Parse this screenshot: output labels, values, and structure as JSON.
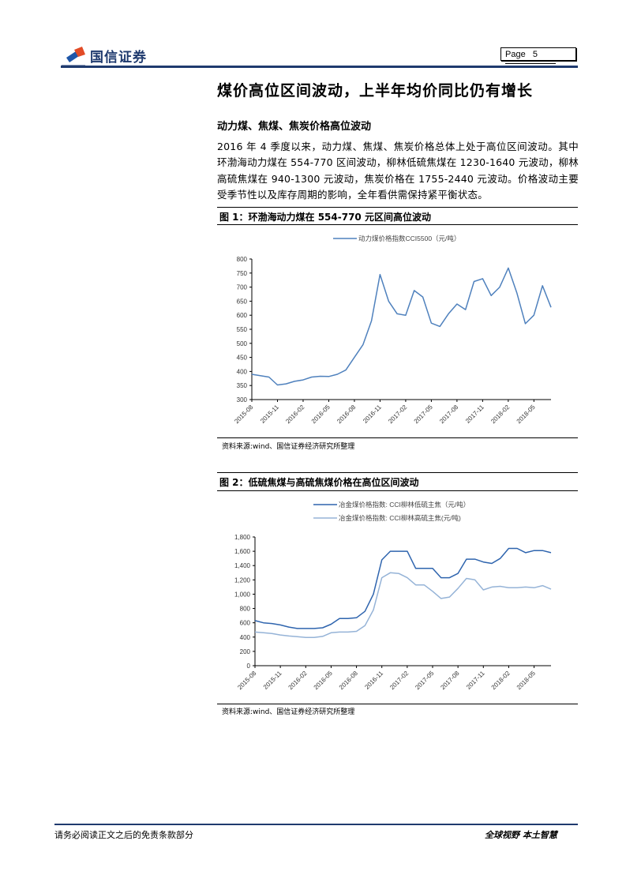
{
  "header": {
    "brand": "国信证券",
    "page_label": "Page",
    "page_number": "5"
  },
  "title": "煤价高位区间波动，上半年均价同比仍有增长",
  "section": {
    "subtitle": "动力煤、焦煤、焦炭价格高位波动",
    "paragraph": "2016 年 4 季度以来，动力煤、焦煤、焦炭价格总体上处于高位区间波动。其中环渤海动力煤在 554-770 区间波动，柳林低硫焦煤在 1230-1640 元波动，柳林高硫焦煤在 940-1300 元波动，焦炭价格在 1755-2440 元波动。价格波动主要受季节性以及库存周期的影响，全年看供需保持紧平衡状态。"
  },
  "figures": [
    {
      "label": "图 1：环渤海动力煤在 554-770 元区间高位波动",
      "legend": [
        "动力煤价格指数CCI5500（元/吨）"
      ],
      "source": "资料来源:wind、国信证券经济研究所整理"
    },
    {
      "label": "图 2：低硫焦煤与高硫焦煤价格在高位区间波动",
      "legend": [
        "冶金煤价格指数: CCI柳林低硫主焦（元/吨）",
        "冶金煤价格指数: CCI柳林高硫主焦(元/吨)"
      ],
      "source": "资料来源:wind、国信证券经济研究所整理"
    }
  ],
  "chart_data": [
    {
      "type": "line",
      "title": "环渤海动力煤在 554-770 元区间高位波动",
      "xlabel": "",
      "ylabel": "",
      "ylim": [
        300,
        800
      ],
      "yticks": [
        300,
        350,
        400,
        450,
        500,
        550,
        600,
        650,
        700,
        750,
        800
      ],
      "xticks": [
        "2015-08",
        "2015-11",
        "2016-02",
        "2016-05",
        "2016-08",
        "2016-11",
        "2017-02",
        "2017-05",
        "2017-08",
        "2017-11",
        "2018-02",
        "2018-05"
      ],
      "legend_position": "top",
      "grid": false,
      "colors": [
        "#4f81bd"
      ],
      "series": [
        {
          "name": "动力煤价格指数CCI5500（元/吨）",
          "x": [
            "2015-08",
            "2015-09",
            "2015-10",
            "2015-11",
            "2015-12",
            "2016-01",
            "2016-02",
            "2016-03",
            "2016-04",
            "2016-05",
            "2016-06",
            "2016-07",
            "2016-08",
            "2016-09",
            "2016-10",
            "2016-11",
            "2016-12",
            "2017-01",
            "2017-02",
            "2017-03",
            "2017-04",
            "2017-05",
            "2017-06",
            "2017-07",
            "2017-08",
            "2017-09",
            "2017-10",
            "2017-11",
            "2017-12",
            "2018-01",
            "2018-02",
            "2018-03",
            "2018-04",
            "2018-05",
            "2018-06",
            "2018-07"
          ],
          "values": [
            390,
            385,
            380,
            352,
            356,
            365,
            370,
            380,
            383,
            382,
            390,
            405,
            450,
            495,
            580,
            745,
            650,
            605,
            600,
            688,
            665,
            572,
            560,
            605,
            640,
            620,
            720,
            730,
            670,
            700,
            768,
            680,
            570,
            600,
            705,
            628
          ]
        }
      ]
    },
    {
      "type": "line",
      "title": "低硫焦煤与高硫焦煤价格在高位区间波动",
      "xlabel": "",
      "ylabel": "",
      "ylim": [
        0,
        1800
      ],
      "yticks": [
        0,
        200,
        400,
        600,
        800,
        1000,
        1200,
        1400,
        1600,
        1800
      ],
      "xticks": [
        "2015-08",
        "2015-11",
        "2016-02",
        "2016-05",
        "2016-08",
        "2016-11",
        "2017-02",
        "2017-05",
        "2017-08",
        "2017-11",
        "2018-02",
        "2018-05"
      ],
      "legend_position": "top",
      "grid": false,
      "colors": [
        "#2e64ae",
        "#95b3d7"
      ],
      "series": [
        {
          "name": "冶金煤价格指数: CCI柳林低硫主焦（元/吨）",
          "x": [
            "2015-08",
            "2015-09",
            "2015-10",
            "2015-11",
            "2015-12",
            "2016-01",
            "2016-02",
            "2016-03",
            "2016-04",
            "2016-05",
            "2016-06",
            "2016-07",
            "2016-08",
            "2016-09",
            "2016-10",
            "2016-11",
            "2016-12",
            "2017-01",
            "2017-02",
            "2017-03",
            "2017-04",
            "2017-05",
            "2017-06",
            "2017-07",
            "2017-08",
            "2017-09",
            "2017-10",
            "2017-11",
            "2017-12",
            "2018-01",
            "2018-02",
            "2018-03",
            "2018-04",
            "2018-05",
            "2018-06",
            "2018-07"
          ],
          "values": [
            630,
            600,
            590,
            570,
            540,
            520,
            520,
            520,
            530,
            580,
            660,
            660,
            670,
            760,
            1000,
            1480,
            1600,
            1600,
            1600,
            1360,
            1360,
            1360,
            1230,
            1230,
            1290,
            1490,
            1490,
            1450,
            1430,
            1500,
            1640,
            1640,
            1580,
            1610,
            1610,
            1580
          ]
        },
        {
          "name": "冶金煤价格指数: CCI柳林高硫主焦(元/吨)",
          "x": [
            "2015-08",
            "2015-09",
            "2015-10",
            "2015-11",
            "2015-12",
            "2016-01",
            "2016-02",
            "2016-03",
            "2016-04",
            "2016-05",
            "2016-06",
            "2016-07",
            "2016-08",
            "2016-09",
            "2016-10",
            "2016-11",
            "2016-12",
            "2017-01",
            "2017-02",
            "2017-03",
            "2017-04",
            "2017-05",
            "2017-06",
            "2017-07",
            "2017-08",
            "2017-09",
            "2017-10",
            "2017-11",
            "2017-12",
            "2018-01",
            "2018-02",
            "2018-03",
            "2018-04",
            "2018-05",
            "2018-06",
            "2018-07"
          ],
          "values": [
            470,
            460,
            450,
            430,
            415,
            405,
            395,
            395,
            410,
            460,
            470,
            470,
            480,
            560,
            780,
            1230,
            1300,
            1290,
            1230,
            1130,
            1130,
            1040,
            940,
            960,
            1080,
            1220,
            1200,
            1060,
            1100,
            1110,
            1090,
            1090,
            1100,
            1090,
            1120,
            1070
          ]
        }
      ]
    }
  ],
  "footer": {
    "disclaimer": "请务必阅读正文之后的免责条款部分",
    "slogan": "全球视野  本土智慧"
  }
}
